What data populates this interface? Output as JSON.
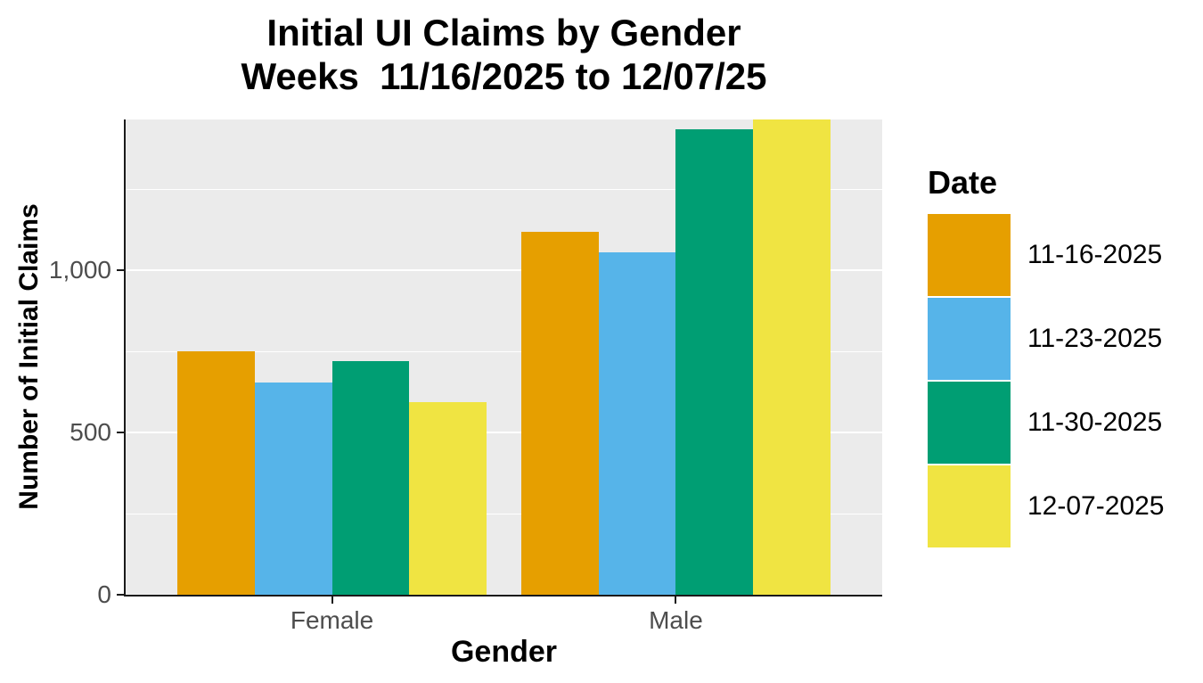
{
  "chart_data": {
    "type": "bar",
    "title": "Initial UI Claims by Gender Weeks 11/16/2025 to 12/07/25",
    "title_lines": [
      "Initial UI Claims by Gender",
      "Weeks  11/16/2025 to 12/07/25"
    ],
    "xlabel": "Gender",
    "ylabel": "Number of Initial Claims",
    "categories": [
      "Female",
      "Male"
    ],
    "series": [
      {
        "name": "11-16-2025",
        "color": "#E69F00",
        "values": [
          750,
          1120
        ]
      },
      {
        "name": "11-23-2025",
        "color": "#56B4E9",
        "values": [
          655,
          1055
        ]
      },
      {
        "name": "11-30-2025",
        "color": "#009E73",
        "values": [
          720,
          1435
        ]
      },
      {
        "name": "12-07-2025",
        "color": "#F0E442",
        "values": [
          595,
          1465
        ]
      }
    ],
    "legend_title": "Date",
    "legend_position": "right",
    "ylim": [
      0,
      1465
    ],
    "y_major_ticks": [
      {
        "value": 0,
        "label": "0"
      },
      {
        "value": 500,
        "label": "500"
      },
      {
        "value": 1000,
        "label": "1,000"
      }
    ],
    "y_minor_ticks": [
      250,
      750,
      1250
    ],
    "grid": true,
    "colors": {
      "panel_background": "#EBEBEB",
      "gridline": "#FFFFFF",
      "axis_line": "#1A1A1A",
      "tick_label": "#4D4D4D",
      "title_text": "#000000"
    }
  }
}
